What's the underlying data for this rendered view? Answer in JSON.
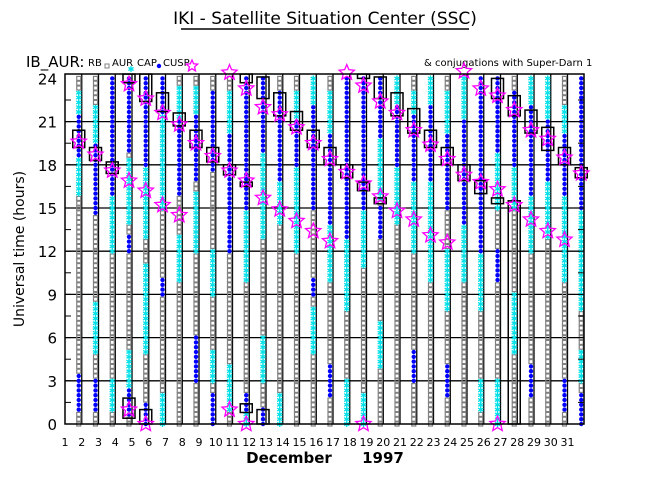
{
  "chart_data": {
    "type": "scatter",
    "title": "IKI - Satellite Situation Center (SSC)",
    "satellite_label": "IB_AUR:",
    "legend": {
      "rb_label": "RB",
      "aur_label": "AUR",
      "cap_label": "CAP",
      "cusp_label": "CUSP",
      "conjugation_label": "& conjugations with Super-Darn 1",
      "placement": "top"
    },
    "ylabel": "Universal time (hours)",
    "xlabel_month": "December",
    "xlabel_year": "1997",
    "ylim": [
      0,
      24
    ],
    "yticks": [
      0,
      3,
      6,
      9,
      12,
      15,
      18,
      21,
      24
    ],
    "xticks": [
      1,
      2,
      3,
      4,
      5,
      6,
      7,
      8,
      9,
      10,
      11,
      12,
      13,
      14,
      15,
      16,
      17,
      18,
      19,
      20,
      21,
      22,
      23,
      24,
      25,
      26,
      27,
      28,
      29,
      30,
      31
    ],
    "grid": true,
    "colors": {
      "aur": "#808080",
      "cap": "#00e0e8",
      "cusp": "#0000ff",
      "conjugation": "#ff00ff",
      "box": "#000000"
    },
    "days": [
      {
        "day": 1,
        "boxes": [
          [
            19.2,
            20.4
          ]
        ],
        "stars": [
          19.6
        ],
        "cusp": [
          [
            18.5,
            21.5
          ],
          [
            0.8,
            3.5
          ]
        ],
        "cap": [
          [
            16,
            18.5
          ],
          [
            21.5,
            23
          ]
        ]
      },
      {
        "day": 2,
        "boxes": [
          [
            18.3,
            19.2
          ]
        ],
        "stars": [
          18.7
        ],
        "cusp": [
          [
            14.5,
            19.5
          ],
          [
            1,
            3
          ]
        ],
        "cap": [
          [
            19.5,
            22
          ],
          [
            5,
            8.5
          ]
        ]
      },
      {
        "day": 3,
        "boxes": [
          [
            17.4,
            18.2
          ]
        ],
        "stars": [
          17.6
        ],
        "cusp": [
          [
            16,
            24
          ]
        ],
        "cap": [
          [
            12,
            16
          ],
          [
            1,
            3
          ]
        ]
      },
      {
        "day": 4,
        "boxes": [
          [
            23.7,
            24.3
          ],
          [
            0.4,
            1.8
          ]
        ],
        "stars": [
          23.6,
          16.9,
          1.0
        ],
        "cusp": [
          [
            19,
            24
          ],
          [
            0.4,
            2.5
          ],
          [
            12,
            13
          ]
        ],
        "cap": [
          [
            1.8,
            5
          ],
          [
            14,
            18.5
          ]
        ]
      },
      {
        "day": 5,
        "boxes": [
          [
            22.4,
            24.3
          ],
          [
            0,
            1
          ]
        ],
        "stars": [
          22.6,
          16.2,
          0
        ],
        "cusp": [
          [
            18,
            24
          ],
          [
            0,
            1.5
          ]
        ],
        "cap": [
          [
            13,
            18
          ],
          [
            5,
            11
          ]
        ]
      },
      {
        "day": 6,
        "boxes": [
          [
            21.7,
            23
          ]
        ],
        "stars": [
          21.6,
          15.2
        ],
        "cusp": [
          [
            21.5,
            24
          ],
          [
            9,
            10
          ]
        ],
        "cap": [
          [
            15,
            21.5
          ],
          [
            0,
            2
          ]
        ]
      },
      {
        "day": 7,
        "boxes": [
          [
            20.7,
            21.6
          ]
        ],
        "stars": [
          20.8,
          14.5
        ],
        "cusp": [
          [
            16,
            21
          ]
        ],
        "cap": [
          [
            21,
            23.5
          ],
          [
            10,
            13
          ]
        ]
      },
      {
        "day": 8,
        "boxes": [
          [
            19.2,
            20.4
          ]
        ],
        "stars": [
          19.5
        ],
        "cusp": [
          [
            17,
            21.5
          ],
          [
            3,
            6
          ]
        ],
        "cap": [
          [
            21.5,
            23.5
          ],
          [
            12,
            16
          ]
        ]
      },
      {
        "day": 9,
        "boxes": [
          [
            18.2,
            19.2
          ]
        ],
        "stars": [
          18.6
        ],
        "cusp": [
          [
            17.5,
            23
          ],
          [
            0,
            2
          ]
        ],
        "cap": [
          [
            9,
            12
          ],
          [
            3,
            5
          ]
        ]
      },
      {
        "day": 10,
        "boxes": [
          [
            17.3,
            18
          ]
        ],
        "stars": [
          17.6,
          24.4,
          1.0
        ],
        "cusp": [
          [
            12,
            20
          ]
        ],
        "cap": [
          [
            20,
            23
          ],
          [
            1,
            4
          ]
        ]
      },
      {
        "day": 11,
        "boxes": [
          [
            23.7,
            24.3
          ],
          [
            16.5,
            16.8
          ],
          [
            0.8,
            1.4
          ]
        ],
        "stars": [
          23.3,
          16.9,
          0
        ],
        "cusp": [
          [
            15,
            24
          ],
          [
            1,
            2
          ]
        ],
        "cap": [
          [
            10,
            15
          ],
          [
            0,
            1
          ]
        ]
      },
      {
        "day": 12,
        "boxes": [
          [
            22.6,
            24.1
          ],
          [
            0,
            1
          ]
        ],
        "stars": [
          22.0,
          15.7
        ],
        "cusp": [
          [
            19,
            24
          ],
          [
            0,
            1
          ]
        ],
        "cap": [
          [
            13,
            19
          ],
          [
            3,
            6
          ]
        ]
      },
      {
        "day": 13,
        "boxes": [
          [
            21.4,
            23
          ]
        ],
        "stars": [
          21.5,
          14.9
        ],
        "cusp": [
          [
            17,
            23
          ]
        ],
        "cap": [
          [
            14,
            17
          ],
          [
            0,
            2
          ]
        ]
      },
      {
        "day": 14,
        "boxes": [
          [
            20.4,
            21.7
          ]
        ],
        "stars": [
          20.6,
          14.1
        ],
        "cusp": [
          [
            18,
            21
          ]
        ],
        "cap": [
          [
            12,
            18
          ],
          [
            21,
            23
          ]
        ]
      },
      {
        "day": 15,
        "boxes": [
          [
            19.2,
            20.4
          ]
        ],
        "stars": [
          19.5,
          13.4
        ],
        "cusp": [
          [
            15,
            22
          ],
          [
            9,
            10
          ]
        ],
        "cap": [
          [
            22,
            24
          ],
          [
            5,
            8
          ]
        ]
      },
      {
        "day": 16,
        "boxes": [
          [
            18,
            19.2
          ]
        ],
        "stars": [
          18.4,
          12.7
        ],
        "cusp": [
          [
            14,
            20
          ],
          [
            2,
            4
          ]
        ],
        "cap": [
          [
            20,
            23
          ],
          [
            10,
            14
          ]
        ]
      },
      {
        "day": 17,
        "boxes": [
          [
            17.1,
            18
          ]
        ],
        "stars": [
          17.5,
          24.4
        ],
        "cusp": [
          [
            13,
            24
          ]
        ],
        "cap": [
          [
            8,
            13
          ],
          [
            0,
            3
          ]
        ]
      },
      {
        "day": 18,
        "boxes": [
          [
            24,
            24.3
          ],
          [
            16.2,
            16.8
          ]
        ],
        "stars": [
          23.5,
          16.7,
          0
        ],
        "cusp": [
          [
            15,
            24
          ]
        ],
        "cap": [
          [
            11,
            15
          ],
          [
            0,
            2
          ]
        ]
      },
      {
        "day": 19,
        "boxes": [
          [
            22.6,
            24.1
          ],
          [
            15.3,
            15.7
          ]
        ],
        "stars": [
          22.4,
          15.8
        ],
        "cusp": [
          [
            20,
            24
          ],
          [
            13,
            15
          ]
        ],
        "cap": [
          [
            15.5,
            20
          ],
          [
            4,
            7
          ]
        ]
      },
      {
        "day": 20,
        "boxes": [
          [
            21.4,
            23
          ]
        ],
        "stars": [
          21.6,
          14.8
        ],
        "cusp": [
          [
            18,
            22
          ]
        ],
        "cap": [
          [
            14,
            18
          ],
          [
            22,
            24
          ]
        ]
      },
      {
        "day": 21,
        "boxes": [
          [
            20.2,
            21.9
          ]
        ],
        "stars": [
          20.4,
          14.2
        ],
        "cusp": [
          [
            17,
            21.5
          ],
          [
            3,
            5
          ]
        ],
        "cap": [
          [
            12,
            17
          ],
          [
            21.5,
            23
          ]
        ]
      },
      {
        "day": 22,
        "boxes": [
          [
            19.2,
            20.4
          ]
        ],
        "stars": [
          19.4,
          13.1
        ],
        "cusp": [
          [
            17,
            22
          ]
        ],
        "cap": [
          [
            10,
            17
          ],
          [
            22,
            24
          ]
        ]
      },
      {
        "day": 23,
        "boxes": [
          [
            18,
            19.2
          ]
        ],
        "stars": [
          18.4,
          12.6
        ],
        "cusp": [
          [
            15,
            20
          ],
          [
            2,
            4
          ]
        ],
        "cap": [
          [
            20,
            23
          ],
          [
            8,
            12
          ]
        ]
      },
      {
        "day": 24,
        "boxes": [
          [
            16.9,
            18
          ]
        ],
        "stars": [
          17.3,
          24.5
        ],
        "cusp": [
          [
            14,
            21
          ]
        ],
        "cap": [
          [
            21,
            24
          ],
          [
            10,
            14
          ]
        ]
      },
      {
        "day": 25,
        "boxes": [
          [
            16,
            16.9
          ]
        ],
        "stars": [
          16.8,
          23.3
        ],
        "cusp": [
          [
            12,
            24
          ]
        ],
        "cap": [
          [
            8,
            12
          ],
          [
            1,
            3
          ]
        ]
      },
      {
        "day": 26,
        "boxes": [
          [
            22.6,
            24
          ],
          [
            15.3,
            15.7
          ]
        ],
        "stars": [
          22.8,
          16.3,
          0
        ],
        "cusp": [
          [
            19,
            24
          ],
          [
            10,
            12
          ]
        ],
        "cap": [
          [
            15,
            19
          ],
          [
            0,
            3
          ]
        ]
      },
      {
        "day": 27,
        "boxes": [
          [
            21.4,
            22.8
          ],
          [
            0,
            15.5
          ]
        ],
        "stars": [
          21.8,
          15.2
        ],
        "cusp": [
          [
            18,
            23
          ]
        ],
        "cap": [
          [
            15,
            18
          ],
          [
            5,
            9
          ]
        ]
      },
      {
        "day": 28,
        "boxes": [
          [
            20.2,
            21.8
          ]
        ],
        "stars": [
          20.4,
          14.2
        ],
        "cusp": [
          [
            16,
            22
          ],
          [
            2,
            4
          ]
        ],
        "cap": [
          [
            12,
            16
          ],
          [
            22,
            24
          ]
        ]
      },
      {
        "day": 29,
        "boxes": [
          [
            19,
            20.6
          ]
        ],
        "stars": [
          19.8,
          13.4
        ],
        "cusp": [
          [
            17,
            21
          ]
        ],
        "cap": [
          [
            13,
            17
          ],
          [
            21,
            24
          ]
        ]
      },
      {
        "day": 30,
        "boxes": [
          [
            18,
            19.2
          ]
        ],
        "stars": [
          18.5,
          12.8
        ],
        "cusp": [
          [
            16,
            20
          ],
          [
            1,
            3
          ]
        ],
        "cap": [
          [
            10,
            16
          ],
          [
            20,
            22
          ]
        ]
      },
      {
        "day": 31,
        "boxes": [
          [
            17.1,
            17.8
          ]
        ],
        "stars": [
          17.4
        ],
        "cusp": [
          [
            15,
            24
          ],
          [
            0,
            2
          ]
        ],
        "cap": [
          [
            8,
            15
          ],
          [
            3,
            5
          ]
        ]
      }
    ]
  }
}
